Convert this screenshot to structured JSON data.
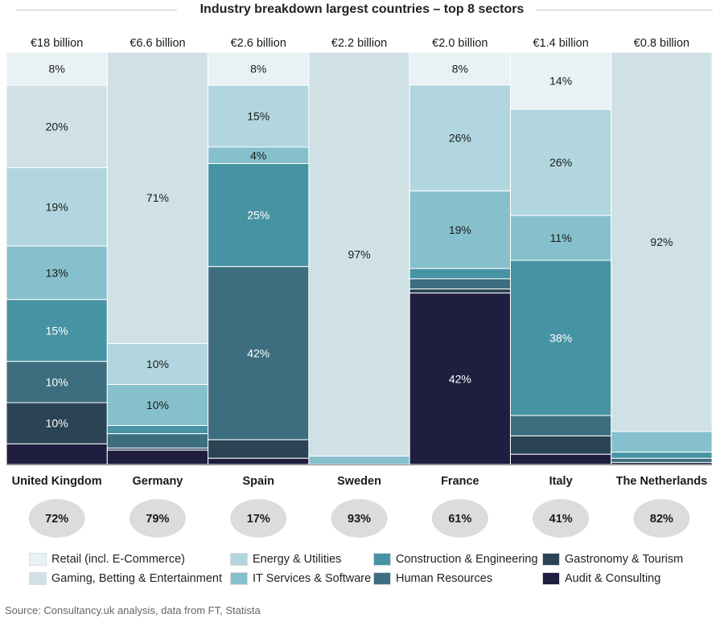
{
  "title": "Industry breakdown largest countries – top 8 sectors",
  "source": "Source: Consultancy.uk analysis, data from FT, Statista",
  "chart_data": {
    "type": "stacked-bar (100%)",
    "title": "Industry breakdown largest countries – top 8 sectors",
    "categories": [
      "United Kingdom",
      "Germany",
      "Spain",
      "Sweden",
      "France",
      "Italy",
      "The Netherlands"
    ],
    "totals": [
      "€18 billion",
      "€6.6 billion",
      "€2.6 billion",
      "€2.2 billion",
      "€2.0 billion",
      "€1.4 billion",
      "€0.8 billion"
    ],
    "top8_share": [
      "72%",
      "79%",
      "17%",
      "93%",
      "61%",
      "41%",
      "82%"
    ],
    "series": [
      {
        "name": "Retail (incl. E-Commerce)",
        "color": "#e8f1f3",
        "text_color": "#1a1a1a",
        "values": [
          8,
          0,
          8,
          0,
          8,
          14,
          0
        ]
      },
      {
        "name": "Gaming, Betting & Entertainment",
        "color": "#cfe1e5",
        "text_color": "#1a1a1a",
        "values": [
          20,
          71,
          0,
          97,
          0,
          0,
          92
        ]
      },
      {
        "name": "Energy & Utilities",
        "color": "#b2d6df",
        "text_color": "#1a1a1a",
        "values": [
          19,
          10,
          15,
          0,
          26,
          26,
          0
        ]
      },
      {
        "name": "IT Services & Software",
        "color": "#86c0cc",
        "text_color": "#1a1a1a",
        "values": [
          13,
          10,
          4,
          2,
          19,
          11,
          5
        ]
      },
      {
        "name": "Construction & Engineering",
        "color": "#4693a3",
        "text_color": "#ffffff",
        "values": [
          15,
          2,
          25,
          0,
          2.5,
          38,
          1.5
        ]
      },
      {
        "name": "Human Resources",
        "color": "#3d6e7f",
        "text_color": "#ffffff",
        "values": [
          10,
          3.5,
          42,
          0,
          2.5,
          5,
          1
        ]
      },
      {
        "name": "Gastronomy & Tourism",
        "color": "#2a4455",
        "text_color": "#ffffff",
        "values": [
          10,
          0.5,
          4.5,
          0,
          1,
          4.5,
          0
        ]
      },
      {
        "name": "Audit & Consulting",
        "color": "#1f1e40",
        "text_color": "#ffffff",
        "values": [
          5,
          3.5,
          1.5,
          0,
          42,
          2.5,
          0.5
        ]
      }
    ],
    "value_labels": [
      [
        "8%",
        "20%",
        "19%",
        "13%",
        "15%",
        "10%",
        "10%",
        ""
      ],
      [
        "",
        "71%",
        "10%",
        "10%",
        "",
        "",
        "",
        ""
      ],
      [
        "8%",
        "",
        "15%",
        "4%",
        "25%",
        "42%",
        "",
        ""
      ],
      [
        "",
        "97%",
        "",
        "",
        "",
        "",
        "",
        ""
      ],
      [
        "8%",
        "",
        "26%",
        "19%",
        "",
        "",
        "",
        "42%"
      ],
      [
        "14%",
        "",
        "26%",
        "11%",
        "38%",
        "",
        "",
        ""
      ],
      [
        "",
        "92%",
        "",
        "",
        "",
        "",
        "",
        ""
      ]
    ],
    "legend": [
      "Retail (incl. E-Commerce)",
      "Gaming, Betting & Entertainment",
      "Energy & Utilities",
      "IT Services & Software",
      "Construction & Engineering",
      "Human Resources",
      "Gastronomy & Tourism",
      "Audit & Consulting"
    ],
    "ylim": [
      0,
      100
    ],
    "legend_position": "bottom"
  }
}
